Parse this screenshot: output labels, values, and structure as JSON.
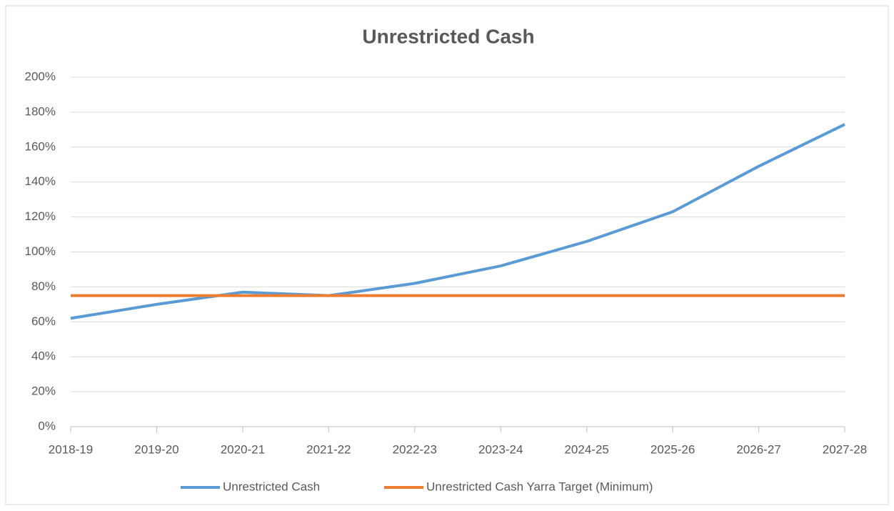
{
  "chart_data": {
    "type": "line",
    "title": "Unrestricted Cash",
    "categories": [
      "2018-19",
      "2019-20",
      "2020-21",
      "2021-22",
      "2022-23",
      "2023-24",
      "2024-25",
      "2025-26",
      "2026-27",
      "2027-28"
    ],
    "series": [
      {
        "name": "Unrestricted Cash",
        "color": "#5b9bd5",
        "values": [
          62,
          70,
          77,
          75,
          82,
          92,
          106,
          123,
          149,
          173
        ]
      },
      {
        "name": "Unrestricted Cash Yarra Target (Minimum)",
        "color": "#ed7d31",
        "values": [
          75,
          75,
          75,
          75,
          75,
          75,
          75,
          75,
          75,
          75
        ]
      }
    ],
    "ylim": [
      0,
      200
    ],
    "yticks": [
      {
        "value": 0,
        "label": "0%"
      },
      {
        "value": 20,
        "label": "20%"
      },
      {
        "value": 40,
        "label": "40%"
      },
      {
        "value": 60,
        "label": "60%"
      },
      {
        "value": 80,
        "label": "80%"
      },
      {
        "value": 100,
        "label": "100%"
      },
      {
        "value": 120,
        "label": "120%"
      },
      {
        "value": 140,
        "label": "140%"
      },
      {
        "value": 160,
        "label": "160%"
      },
      {
        "value": 180,
        "label": "180%"
      },
      {
        "value": 200,
        "label": "200%"
      }
    ],
    "grid": true,
    "legend": "bottom"
  }
}
